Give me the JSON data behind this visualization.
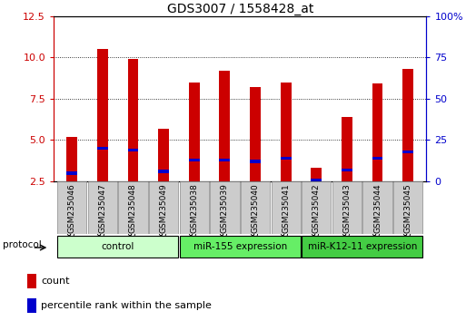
{
  "title": "GDS3007 / 1558428_at",
  "samples": [
    "GSM235046",
    "GSM235047",
    "GSM235048",
    "GSM235049",
    "GSM235038",
    "GSM235039",
    "GSM235040",
    "GSM235041",
    "GSM235042",
    "GSM235043",
    "GSM235044",
    "GSM235045"
  ],
  "count_values": [
    5.2,
    10.5,
    9.9,
    5.7,
    8.5,
    9.2,
    8.2,
    8.5,
    3.3,
    6.4,
    8.4,
    9.3
  ],
  "percentile_values": [
    3.0,
    4.5,
    4.4,
    3.1,
    3.8,
    3.8,
    3.7,
    3.9,
    2.6,
    3.2,
    3.9,
    4.3
  ],
  "bar_color": "#CC0000",
  "blue_color": "#0000CC",
  "ylim_left": [
    2.5,
    12.5
  ],
  "ylim_right": [
    0,
    100
  ],
  "yticks_left": [
    2.5,
    5.0,
    7.5,
    10.0,
    12.5
  ],
  "yticks_right": [
    0,
    25,
    50,
    75,
    100
  ],
  "groups": [
    {
      "label": "control",
      "start": 0,
      "end": 4
    },
    {
      "label": "miR-155 expression",
      "start": 4,
      "end": 8
    },
    {
      "label": "miR-K12-11 expression",
      "start": 8,
      "end": 12
    }
  ],
  "group_colors": [
    "#ccffcc",
    "#66ee66",
    "#44cc44"
  ],
  "protocol_label": "protocol",
  "legend_count": "count",
  "legend_percentile": "percentile rank within the sample",
  "bar_width": 0.35,
  "grid_color": "#000000",
  "bg_color": "#ffffff",
  "left_tick_color": "#CC0000",
  "right_tick_color": "#0000CC",
  "title_fontsize": 10,
  "tick_fontsize": 8,
  "label_fontsize": 7.5
}
